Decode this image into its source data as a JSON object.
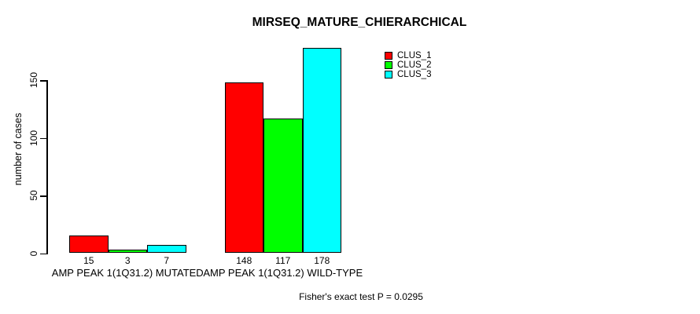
{
  "title": "MIRSEQ_MATURE_CHIERARCHICAL",
  "footer": "Fisher's exact test P = 0.0295",
  "chart_data": {
    "type": "bar",
    "title": "MIRSEQ_MATURE_CHIERARCHICAL",
    "xlabel": "",
    "ylabel": "number of cases",
    "categories": [
      "AMP PEAK 1(1Q31.2) MUTATED",
      "AMP PEAK 1(1Q31.2) WILD-TYPE"
    ],
    "series": [
      {
        "name": "CLUS_1",
        "color": "#ff0000",
        "values": [
          15,
          148
        ]
      },
      {
        "name": "CLUS_2",
        "color": "#00ff00",
        "values": [
          3,
          117
        ]
      },
      {
        "name": "CLUS_3",
        "color": "#00ffff",
        "values": [
          7,
          178
        ]
      }
    ],
    "bar_value_labels": [
      [
        "15",
        "3",
        "7"
      ],
      [
        "148",
        "117",
        "178"
      ]
    ],
    "yticks": [
      0,
      50,
      100,
      150
    ],
    "ylim": [
      0,
      180
    ],
    "grid": false,
    "legend_position": "top-right",
    "legend_entries": [
      "CLUS_1",
      "CLUS_2",
      "CLUS_3"
    ],
    "annotation": "Fisher's exact test P = 0.0295",
    "axis_color": "#000000",
    "bar_border_color": "#000000"
  }
}
